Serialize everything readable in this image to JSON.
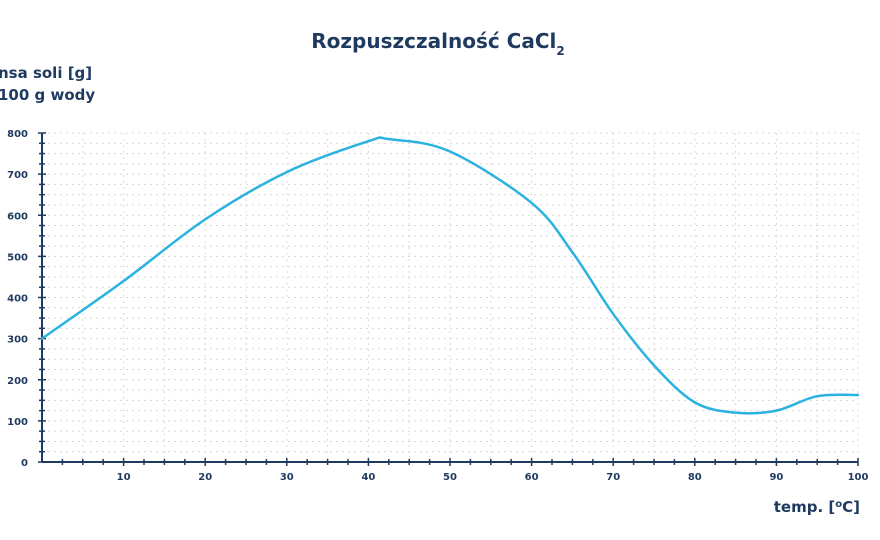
{
  "chart_data": {
    "type": "line",
    "title": "Rozpuszczalność CaCl",
    "title_subscript": "2",
    "ylabel_line1": "nsa soli [g]",
    "ylabel_line2": "100 g wody",
    "xlabel": "temp. [",
    "xlabel_degree": "o",
    "xlabel_suffix": "C]",
    "xlim": [
      0,
      100
    ],
    "ylim": [
      0,
      800
    ],
    "xticks": [
      {
        "value": 10,
        "label": "10"
      },
      {
        "value": 20,
        "label": "20"
      },
      {
        "value": 30,
        "label": "30"
      },
      {
        "value": 40,
        "label": "40"
      },
      {
        "value": 50,
        "label": "50"
      },
      {
        "value": 60,
        "label": "60"
      },
      {
        "value": 70,
        "label": "70"
      },
      {
        "value": 80,
        "label": "80"
      },
      {
        "value": 90,
        "label": "90"
      },
      {
        "value": 100,
        "label": "100"
      }
    ],
    "yticks": [
      {
        "value": 0,
        "label": "0"
      },
      {
        "value": 100,
        "label": "100"
      },
      {
        "value": 200,
        "label": "200"
      },
      {
        "value": 300,
        "label": "300"
      },
      {
        "value": 400,
        "label": "400"
      },
      {
        "value": 500,
        "label": "500"
      },
      {
        "value": 600,
        "label": "600"
      },
      {
        "value": 700,
        "label": "700"
      },
      {
        "value": 800,
        "label": "800"
      }
    ],
    "grid": true,
    "series": [
      {
        "color": "#2bb2e0",
        "x": [
          0,
          10,
          20,
          30,
          40,
          42.5,
          50,
          60,
          65,
          70,
          75,
          80,
          85,
          90,
          95,
          100
        ],
        "y": [
          300,
          440,
          590,
          705,
          780,
          785,
          755,
          630,
          510,
          360,
          235,
          145,
          120,
          125,
          160,
          163
        ]
      }
    ]
  },
  "colors": {
    "text": "#1f3a5f",
    "axis": "#1f3a5f",
    "grid": "#d8d8d8",
    "line": "#2bb2e0"
  }
}
